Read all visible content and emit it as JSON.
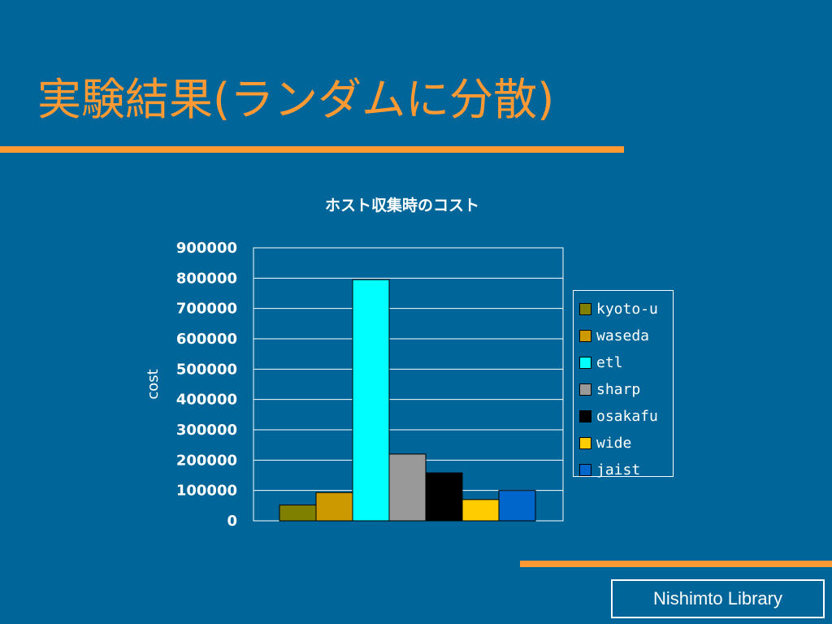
{
  "slide": {
    "title": "実験結果(ランダムに分散)",
    "footer": "Nishimto Library",
    "colors": {
      "background": "#006699",
      "accent": "#ff9933"
    }
  },
  "chart_data": {
    "type": "bar",
    "title": "ホスト収集時のコスト",
    "xlabel": "",
    "ylabel": "cost",
    "ylim": [
      0,
      900000
    ],
    "yticks": [
      "0",
      "100000",
      "200000",
      "300000",
      "400000",
      "500000",
      "600000",
      "700000",
      "800000",
      "900000"
    ],
    "grid": true,
    "legend_position": "right",
    "series": [
      {
        "name": "kyoto-u",
        "values": [
          52000
        ],
        "color": "#808000"
      },
      {
        "name": "waseda",
        "values": [
          93000
        ],
        "color": "#cc9900"
      },
      {
        "name": "etl",
        "values": [
          795000
        ],
        "color": "#00ffff"
      },
      {
        "name": "sharp",
        "values": [
          220000
        ],
        "color": "#999999"
      },
      {
        "name": "osakafu",
        "values": [
          158000
        ],
        "color": "#000000"
      },
      {
        "name": "wide",
        "values": [
          70000
        ],
        "color": "#ffcc00"
      },
      {
        "name": "jaist",
        "values": [
          100000
        ],
        "color": "#0066cc"
      }
    ]
  }
}
